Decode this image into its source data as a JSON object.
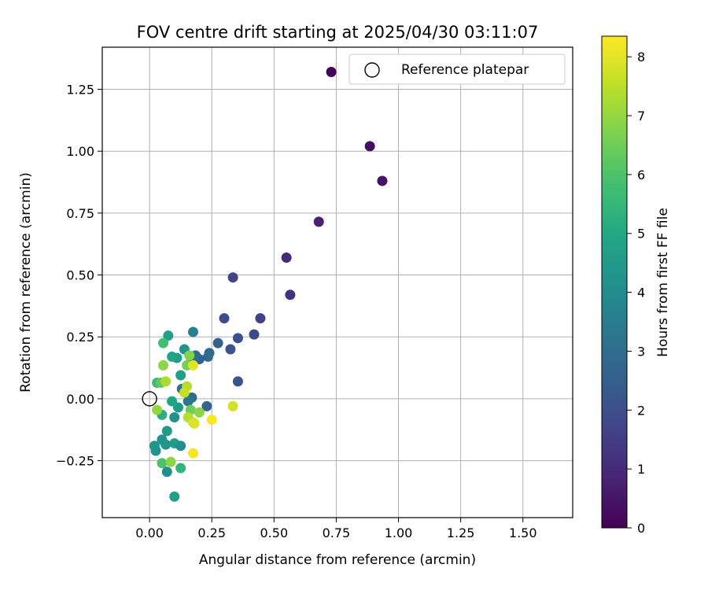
{
  "chart_data": {
    "type": "scatter",
    "title": "FOV centre drift starting at 2025/04/30 03:11:07",
    "xlabel": "Angular distance from reference (arcmin)",
    "ylabel": "Rotation from reference (arcmin)",
    "xlim": [
      -0.19,
      1.7
    ],
    "ylim": [
      -0.48,
      1.42
    ],
    "xticks": [
      "0.00",
      "0.25",
      "0.50",
      "0.75",
      "1.00",
      "1.25",
      "1.50"
    ],
    "xtick_values": [
      0,
      0.25,
      0.5,
      0.75,
      1.0,
      1.25,
      1.5
    ],
    "yticks": [
      "−0.25",
      "0.00",
      "0.25",
      "0.50",
      "0.75",
      "1.00",
      "1.25"
    ],
    "ytick_values": [
      -0.25,
      0,
      0.25,
      0.5,
      0.75,
      1.0,
      1.25
    ],
    "grid": true,
    "legend": {
      "placement": "top-right",
      "label": "Reference platepar"
    },
    "reference_point": {
      "x": 0.0,
      "y": 0.0
    },
    "colorbar": {
      "label": "Hours from first FF file",
      "colormap": "viridis",
      "range": [
        0,
        8.35
      ],
      "ticks": [
        "0",
        "1",
        "2",
        "3",
        "4",
        "5",
        "6",
        "7",
        "8"
      ],
      "tick_values": [
        0,
        1,
        2,
        3,
        4,
        5,
        6,
        7,
        8
      ]
    },
    "points": [
      {
        "x": 0.73,
        "y": 1.32,
        "c": 0.1
      },
      {
        "x": 0.885,
        "y": 1.02,
        "c": 0.3
      },
      {
        "x": 0.935,
        "y": 0.88,
        "c": 0.4
      },
      {
        "x": 0.68,
        "y": 0.715,
        "c": 0.8
      },
      {
        "x": 0.55,
        "y": 0.57,
        "c": 1.0
      },
      {
        "x": 0.565,
        "y": 0.42,
        "c": 1.2
      },
      {
        "x": 0.335,
        "y": 0.49,
        "c": 1.7
      },
      {
        "x": 0.445,
        "y": 0.325,
        "c": 1.6
      },
      {
        "x": 0.3,
        "y": 0.325,
        "c": 1.9
      },
      {
        "x": 0.42,
        "y": 0.26,
        "c": 1.8
      },
      {
        "x": 0.355,
        "y": 0.245,
        "c": 2.0
      },
      {
        "x": 0.325,
        "y": 0.2,
        "c": 2.2
      },
      {
        "x": 0.355,
        "y": 0.07,
        "c": 2.1
      },
      {
        "x": 0.275,
        "y": 0.225,
        "c": 2.6
      },
      {
        "x": 0.24,
        "y": 0.185,
        "c": 2.8
      },
      {
        "x": 0.235,
        "y": 0.17,
        "c": 2.9
      },
      {
        "x": 0.2,
        "y": 0.16,
        "c": 2.5
      },
      {
        "x": 0.185,
        "y": 0.175,
        "c": 3.0
      },
      {
        "x": 0.165,
        "y": 0.145,
        "c": 3.2
      },
      {
        "x": 0.175,
        "y": 0.27,
        "c": 3.6
      },
      {
        "x": 0.17,
        "y": 0.005,
        "c": 2.9
      },
      {
        "x": 0.155,
        "y": -0.01,
        "c": 3.3
      },
      {
        "x": 0.23,
        "y": -0.03,
        "c": 2.7
      },
      {
        "x": 0.13,
        "y": 0.04,
        "c": 3.1
      },
      {
        "x": 0.14,
        "y": 0.2,
        "c": 4.3
      },
      {
        "x": 0.11,
        "y": 0.165,
        "c": 4.6
      },
      {
        "x": 0.09,
        "y": 0.17,
        "c": 4.9
      },
      {
        "x": 0.075,
        "y": 0.255,
        "c": 4.7
      },
      {
        "x": 0.055,
        "y": 0.225,
        "c": 5.8
      },
      {
        "x": 0.125,
        "y": 0.095,
        "c": 4.6
      },
      {
        "x": 0.115,
        "y": -0.035,
        "c": 4.5
      },
      {
        "x": 0.1,
        "y": -0.075,
        "c": 4.2
      },
      {
        "x": 0.09,
        "y": -0.01,
        "c": 4.9
      },
      {
        "x": 0.05,
        "y": -0.065,
        "c": 5.2
      },
      {
        "x": 0.03,
        "y": -0.045,
        "c": 7.0
      },
      {
        "x": 0.07,
        "y": -0.13,
        "c": 4.5
      },
      {
        "x": 0.05,
        "y": -0.165,
        "c": 4.3
      },
      {
        "x": 0.065,
        "y": -0.185,
        "c": 4.4
      },
      {
        "x": 0.1,
        "y": -0.18,
        "c": 4.6
      },
      {
        "x": 0.125,
        "y": -0.19,
        "c": 4.1
      },
      {
        "x": 0.02,
        "y": -0.19,
        "c": 4.4
      },
      {
        "x": 0.025,
        "y": -0.21,
        "c": 4.2
      },
      {
        "x": 0.05,
        "y": -0.26,
        "c": 6.0
      },
      {
        "x": 0.085,
        "y": -0.255,
        "c": 6.9
      },
      {
        "x": 0.125,
        "y": -0.28,
        "c": 5.4
      },
      {
        "x": 0.07,
        "y": -0.295,
        "c": 4.1
      },
      {
        "x": 0.1,
        "y": -0.395,
        "c": 4.7
      },
      {
        "x": 0.03,
        "y": 0.065,
        "c": 5.7
      },
      {
        "x": 0.045,
        "y": 0.065,
        "c": 6.3
      },
      {
        "x": 0.065,
        "y": 0.07,
        "c": 7.3
      },
      {
        "x": 0.055,
        "y": 0.135,
        "c": 6.9
      },
      {
        "x": 0.15,
        "y": 0.135,
        "c": 6.6
      },
      {
        "x": 0.16,
        "y": 0.175,
        "c": 6.8
      },
      {
        "x": 0.175,
        "y": 0.135,
        "c": 8.0
      },
      {
        "x": 0.15,
        "y": 0.05,
        "c": 7.4
      },
      {
        "x": 0.14,
        "y": 0.025,
        "c": 7.6
      },
      {
        "x": 0.165,
        "y": -0.045,
        "c": 6.5
      },
      {
        "x": 0.2,
        "y": -0.055,
        "c": 6.9
      },
      {
        "x": 0.155,
        "y": -0.075,
        "c": 7.4
      },
      {
        "x": 0.175,
        "y": -0.095,
        "c": 7.7
      },
      {
        "x": 0.18,
        "y": -0.1,
        "c": 7.9
      },
      {
        "x": 0.25,
        "y": -0.085,
        "c": 8.3
      },
      {
        "x": 0.335,
        "y": -0.03,
        "c": 7.8
      },
      {
        "x": 0.175,
        "y": -0.22,
        "c": 8.2
      }
    ]
  }
}
